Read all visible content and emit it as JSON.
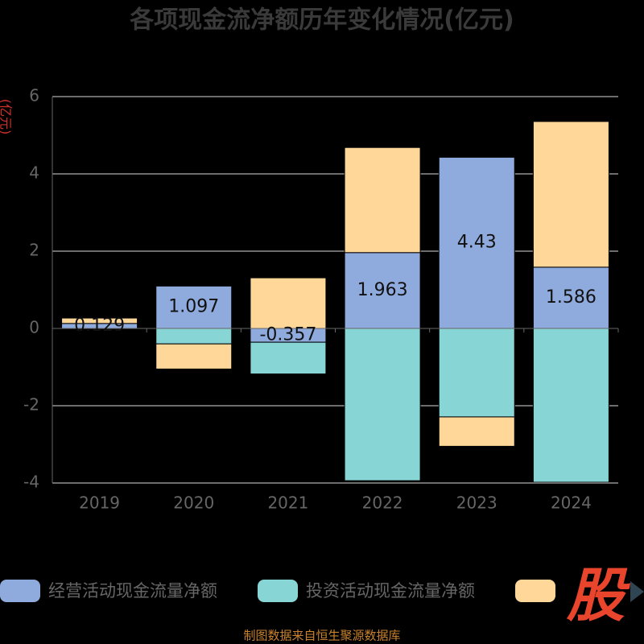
{
  "chart_data": {
    "type": "bar",
    "stacked": true,
    "title": "各项现金流净额历年变化情况(亿元)",
    "y_label": "(亿元)",
    "categories": [
      "2019",
      "2020",
      "2021",
      "2022",
      "2023",
      "2024"
    ],
    "series": [
      {
        "name": "经营活动现金流量净额",
        "color": "#8faadc",
        "values": [
          0.129,
          1.097,
          -0.357,
          1.963,
          4.43,
          1.586
        ]
      },
      {
        "name": "投资活动现金流量净额",
        "color": "#88d5d6",
        "values": [
          0,
          -0.4,
          -0.82,
          -3.94,
          -2.29,
          -3.98
        ]
      },
      {
        "color": "#ffd899",
        "values": [
          0.14,
          -0.65,
          1.31,
          2.72,
          -0.76,
          3.77
        ]
      }
    ],
    "ylim": [
      -4,
      6
    ],
    "yticks": [
      -4,
      -2,
      0,
      2,
      4,
      6
    ],
    "grid": true,
    "source": "制图数据来自恒生聚源数据库",
    "logo": "股"
  }
}
